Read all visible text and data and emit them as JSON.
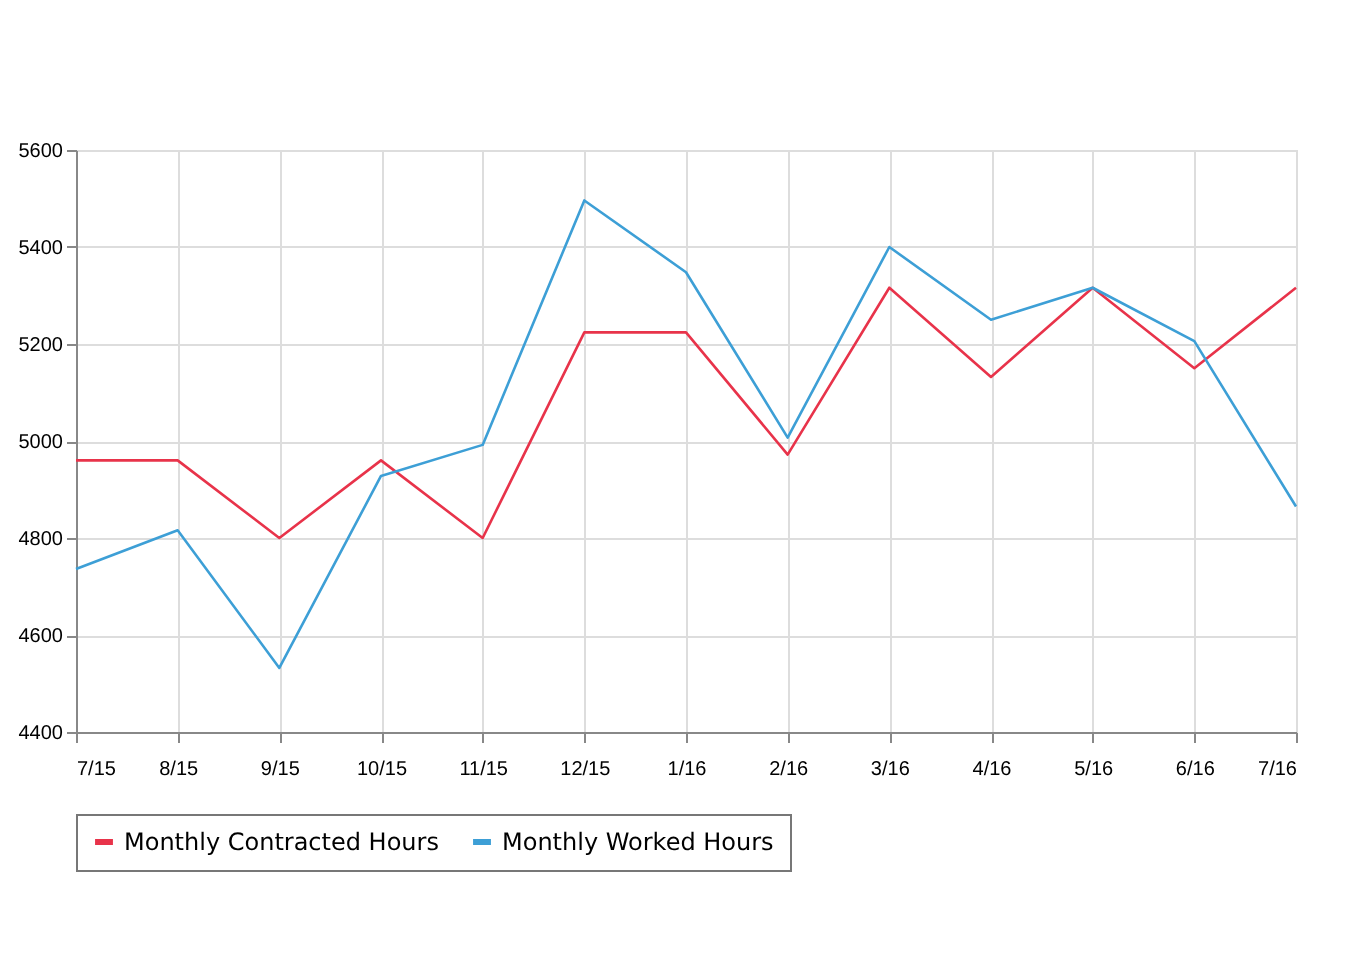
{
  "chart_data": {
    "type": "line",
    "categories": [
      "7/15",
      "8/15",
      "9/15",
      "10/15",
      "11/15",
      "12/15",
      "1/16",
      "2/16",
      "3/16",
      "4/16",
      "5/16",
      "6/16",
      "7/16"
    ],
    "series": [
      {
        "name": "Monthly Contracted Hours",
        "color": "#e8334a",
        "values": [
          4960,
          4960,
          4800,
          4960,
          4800,
          5224,
          5224,
          4972,
          5316,
          5132,
          5316,
          5150,
          5316
        ]
      },
      {
        "name": "Monthly Worked Hours",
        "color": "#3d9fd6",
        "values": [
          4736,
          4816,
          4532,
          4928,
          4992,
          5496,
          5348,
          5007,
          5400,
          5250,
          5316,
          5206,
          4865
        ]
      }
    ],
    "ylim": [
      4400,
      5600
    ],
    "yticks": [
      4400,
      4600,
      4800,
      5000,
      5200,
      5400,
      5600
    ],
    "grid": true,
    "legend": "bottom",
    "marker": "none",
    "line_style": "solid"
  }
}
